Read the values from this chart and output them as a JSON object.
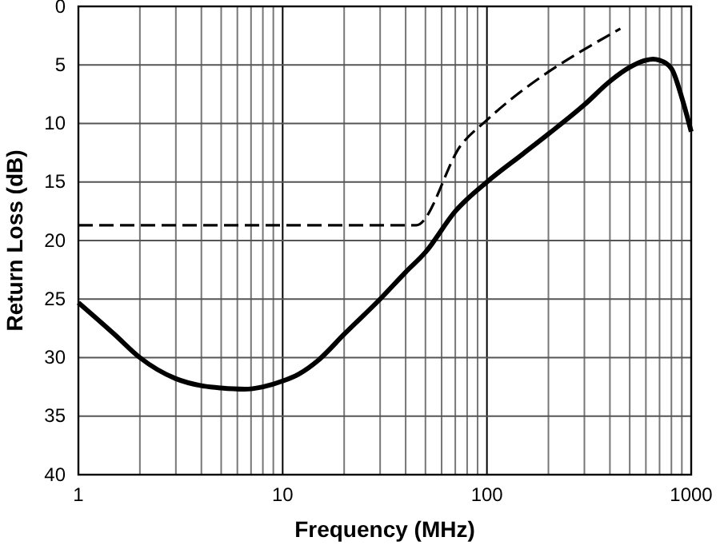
{
  "chart_data": {
    "type": "line",
    "xlabel": "Frequency (MHz)",
    "ylabel": "Return Loss (dB)",
    "log": "x",
    "xlim": [
      1,
      1000
    ],
    "xticks": [
      1,
      10,
      100,
      1000
    ],
    "ylim": [
      40,
      0
    ],
    "yticks": [
      0,
      5,
      10,
      15,
      20,
      25,
      30,
      35,
      40
    ],
    "grid": true,
    "marker": "none",
    "series": [
      {
        "color": "#000000",
        "line_style": "solid",
        "x": [
          1,
          1.5,
          2,
          3,
          4,
          5,
          6.5,
          8,
          10,
          12,
          15,
          20,
          30,
          40,
          50,
          70,
          100,
          150,
          200,
          300,
          400,
          500,
          600,
          650,
          700,
          800,
          900,
          1000
        ],
        "values": [
          25.3,
          28,
          30,
          31.8,
          32.4,
          32.6,
          32.7,
          32.5,
          32,
          31.4,
          30.2,
          28,
          25,
          22.7,
          21,
          17.5,
          15,
          12.6,
          10.9,
          8.4,
          6.4,
          5.2,
          4.6,
          4.5,
          4.6,
          5.3,
          7.8,
          10.7
        ]
      },
      {
        "color": "#000000",
        "line_style": "dashed",
        "x": [
          1,
          45,
          75,
          100,
          450
        ],
        "values": [
          18.7,
          18.7,
          11.8,
          9.7,
          1.9
        ]
      }
    ]
  }
}
